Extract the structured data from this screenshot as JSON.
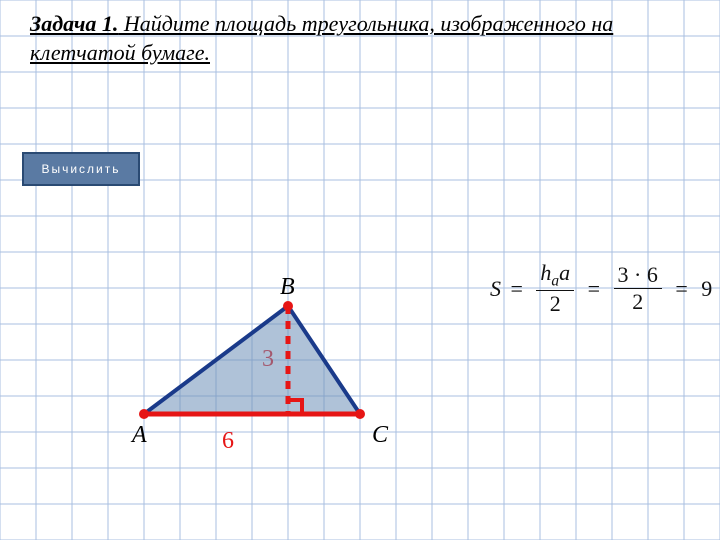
{
  "title": {
    "strong": "Задача 1.",
    "rest": " Найдите площадь треугольника, изображенного на клетчатой бумаге."
  },
  "button": {
    "label": "Вычислить"
  },
  "formula": {
    "S": "S",
    "num1_a": "h",
    "num1_sub": "a",
    "num1_b": "a",
    "den1": "2",
    "num2": "3 · 6",
    "den2": "2",
    "result": "9"
  },
  "grid": {
    "cell": 36,
    "cols": 20,
    "rows": 15,
    "line_color": "#a9bfe0",
    "line_width": 1
  },
  "triangle": {
    "A": {
      "gx": 4,
      "gy": 11.5
    },
    "B": {
      "gx": 8,
      "gy": 8.5
    },
    "C": {
      "gx": 10,
      "gy": 11.5
    },
    "H": {
      "gx": 8,
      "gy": 11.5
    },
    "fill_color": "#6d8fb8",
    "fill_opacity": 0.55,
    "stroke_color": "#1a3a8a",
    "stroke_width": 4,
    "base_color": "#e61515",
    "base_width": 5,
    "height_color": "#e61515",
    "height_width": 5,
    "height_dash": "8 7",
    "vertex_dot_color": "#e61515",
    "vertex_dot_r": 5,
    "right_angle_size": 14
  },
  "labels": {
    "A": "A",
    "B": "B",
    "C": "C",
    "height_val": "3",
    "height_color": "#e61515",
    "base_val": "6",
    "base_color": "#e61515"
  }
}
